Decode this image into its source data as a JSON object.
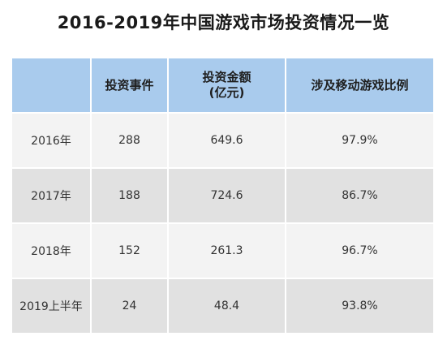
{
  "title": "2016-2019年中国游戏市场投资情况一览",
  "table": {
    "headers": {
      "row_label": "",
      "events": "投资事件",
      "amount_line1": "投资金额",
      "amount_line2": "(亿元)",
      "ratio": "涉及移动游戏比例"
    },
    "rows": [
      {
        "year": "2016年",
        "events": "288",
        "amount": "649.6",
        "ratio": "97.9%"
      },
      {
        "year": "2017年",
        "events": "188",
        "amount": "724.6",
        "ratio": "86.7%"
      },
      {
        "year": "2018年",
        "events": "152",
        "amount": "261.3",
        "ratio": "96.7%"
      },
      {
        "year": "2019上半年",
        "events": "24",
        "amount": "48.4",
        "ratio": "93.8%"
      }
    ]
  },
  "colors": {
    "header_bg": "#a9cbed",
    "row_light": "#f3f3f3",
    "row_dark": "#e1e1e1"
  }
}
